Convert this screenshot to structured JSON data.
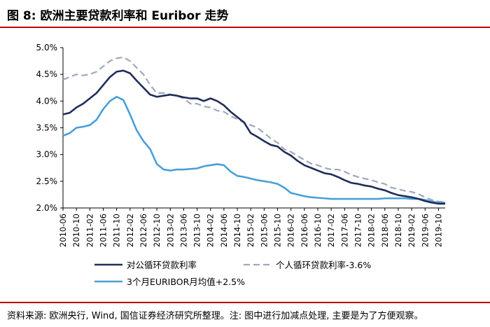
{
  "header": {
    "title": "图 8: 欧洲主要贷款利率和 Euribor 走势"
  },
  "footer": {
    "source": "资料来源: 欧洲央行, Wind, 国信证券经济研究所整理。注: 图中进行加减点处理, 主要是为了方便观察。"
  },
  "chart_data": {
    "type": "line",
    "title": "图 8: 欧洲主要贷款利率和 Euribor 走势",
    "xlabel": "",
    "ylabel": "",
    "x_ticks": [
      "2010-06",
      "2010-10",
      "2011-02",
      "2011-06",
      "2011-10",
      "2012-02",
      "2012-06",
      "2012-10",
      "2013-02",
      "2013-06",
      "2013-10",
      "2014-02",
      "2014-06",
      "2014-10",
      "2015-02",
      "2015-06",
      "2015-10",
      "2016-02",
      "2016-06",
      "2016-10",
      "2017-02",
      "2017-06",
      "2017-10",
      "2018-02",
      "2018-06",
      "2018-10",
      "2019-02",
      "2019-06",
      "2019-10"
    ],
    "y_ticks": [
      "2.0%",
      "2.5%",
      "3.0%",
      "3.5%",
      "4.0%",
      "4.5%",
      "5.0%"
    ],
    "ylim": [
      2.0,
      5.0
    ],
    "legend_position": "bottom",
    "series": [
      {
        "name": "对公循环贷款利率",
        "color": "#1f2d5a",
        "style": "solid",
        "points": [
          [
            "2010-06",
            3.75
          ],
          [
            "2010-08",
            3.78
          ],
          [
            "2010-10",
            3.88
          ],
          [
            "2010-12",
            3.95
          ],
          [
            "2011-02",
            4.05
          ],
          [
            "2011-04",
            4.15
          ],
          [
            "2011-06",
            4.3
          ],
          [
            "2011-08",
            4.45
          ],
          [
            "2011-10",
            4.55
          ],
          [
            "2011-12",
            4.57
          ],
          [
            "2012-02",
            4.52
          ],
          [
            "2012-04",
            4.38
          ],
          [
            "2012-06",
            4.25
          ],
          [
            "2012-08",
            4.12
          ],
          [
            "2012-10",
            4.08
          ],
          [
            "2012-12",
            4.1
          ],
          [
            "2013-02",
            4.12
          ],
          [
            "2013-04",
            4.1
          ],
          [
            "2013-06",
            4.07
          ],
          [
            "2013-08",
            4.05
          ],
          [
            "2013-10",
            4.05
          ],
          [
            "2013-12",
            4.0
          ],
          [
            "2014-02",
            4.05
          ],
          [
            "2014-04",
            4.0
          ],
          [
            "2014-06",
            3.92
          ],
          [
            "2014-08",
            3.8
          ],
          [
            "2014-10",
            3.7
          ],
          [
            "2014-12",
            3.6
          ],
          [
            "2015-02",
            3.4
          ],
          [
            "2015-04",
            3.33
          ],
          [
            "2015-06",
            3.25
          ],
          [
            "2015-08",
            3.18
          ],
          [
            "2015-10",
            3.15
          ],
          [
            "2015-12",
            3.05
          ],
          [
            "2016-02",
            2.98
          ],
          [
            "2016-04",
            2.88
          ],
          [
            "2016-06",
            2.8
          ],
          [
            "2016-08",
            2.75
          ],
          [
            "2016-10",
            2.7
          ],
          [
            "2016-12",
            2.65
          ],
          [
            "2017-02",
            2.63
          ],
          [
            "2017-04",
            2.58
          ],
          [
            "2017-06",
            2.52
          ],
          [
            "2017-08",
            2.47
          ],
          [
            "2017-10",
            2.45
          ],
          [
            "2017-12",
            2.42
          ],
          [
            "2018-02",
            2.4
          ],
          [
            "2018-04",
            2.36
          ],
          [
            "2018-06",
            2.33
          ],
          [
            "2018-08",
            2.28
          ],
          [
            "2018-10",
            2.24
          ],
          [
            "2018-12",
            2.22
          ],
          [
            "2019-02",
            2.2
          ],
          [
            "2019-04",
            2.17
          ],
          [
            "2019-06",
            2.13
          ],
          [
            "2019-08",
            2.1
          ],
          [
            "2019-10",
            2.08
          ],
          [
            "2019-12",
            2.08
          ]
        ]
      },
      {
        "name": "个人循环贷款利率-3.6%",
        "color": "#a0a8bc",
        "style": "dashed",
        "points": [
          [
            "2010-06",
            4.4
          ],
          [
            "2010-08",
            4.45
          ],
          [
            "2010-10",
            4.5
          ],
          [
            "2010-12",
            4.48
          ],
          [
            "2011-02",
            4.5
          ],
          [
            "2011-04",
            4.55
          ],
          [
            "2011-06",
            4.65
          ],
          [
            "2011-08",
            4.75
          ],
          [
            "2011-10",
            4.8
          ],
          [
            "2011-12",
            4.82
          ],
          [
            "2012-02",
            4.75
          ],
          [
            "2012-04",
            4.62
          ],
          [
            "2012-06",
            4.5
          ],
          [
            "2012-08",
            4.3
          ],
          [
            "2012-10",
            4.15
          ],
          [
            "2012-12",
            4.15
          ],
          [
            "2013-02",
            4.12
          ],
          [
            "2013-04",
            4.1
          ],
          [
            "2013-06",
            4.05
          ],
          [
            "2013-08",
            3.95
          ],
          [
            "2013-10",
            3.95
          ],
          [
            "2013-12",
            3.9
          ],
          [
            "2014-02",
            3.88
          ],
          [
            "2014-04",
            3.82
          ],
          [
            "2014-06",
            3.8
          ],
          [
            "2014-08",
            3.72
          ],
          [
            "2014-10",
            3.66
          ],
          [
            "2014-12",
            3.6
          ],
          [
            "2015-02",
            3.55
          ],
          [
            "2015-04",
            3.5
          ],
          [
            "2015-06",
            3.4
          ],
          [
            "2015-08",
            3.3
          ],
          [
            "2015-10",
            3.22
          ],
          [
            "2015-12",
            3.1
          ],
          [
            "2016-02",
            3.05
          ],
          [
            "2016-04",
            2.97
          ],
          [
            "2016-06",
            2.9
          ],
          [
            "2016-08",
            2.83
          ],
          [
            "2016-10",
            2.8
          ],
          [
            "2016-12",
            2.75
          ],
          [
            "2017-02",
            2.72
          ],
          [
            "2017-04",
            2.72
          ],
          [
            "2017-06",
            2.68
          ],
          [
            "2017-08",
            2.62
          ],
          [
            "2017-10",
            2.58
          ],
          [
            "2017-12",
            2.55
          ],
          [
            "2018-02",
            2.52
          ],
          [
            "2018-04",
            2.48
          ],
          [
            "2018-06",
            2.45
          ],
          [
            "2018-08",
            2.38
          ],
          [
            "2018-10",
            2.35
          ],
          [
            "2018-12",
            2.32
          ],
          [
            "2019-02",
            2.3
          ],
          [
            "2019-04",
            2.26
          ],
          [
            "2019-06",
            2.2
          ],
          [
            "2019-08",
            2.15
          ],
          [
            "2019-10",
            2.12
          ],
          [
            "2019-12",
            2.1
          ]
        ]
      },
      {
        "name": "3个月EURIBOR月均值+2.5%",
        "color": "#4a9fd8",
        "style": "solid",
        "points": [
          [
            "2010-06",
            3.35
          ],
          [
            "2010-08",
            3.4
          ],
          [
            "2010-10",
            3.5
          ],
          [
            "2010-12",
            3.52
          ],
          [
            "2011-02",
            3.55
          ],
          [
            "2011-04",
            3.65
          ],
          [
            "2011-06",
            3.85
          ],
          [
            "2011-08",
            4.0
          ],
          [
            "2011-10",
            4.08
          ],
          [
            "2011-12",
            4.02
          ],
          [
            "2012-02",
            3.75
          ],
          [
            "2012-04",
            3.45
          ],
          [
            "2012-06",
            3.25
          ],
          [
            "2012-08",
            3.1
          ],
          [
            "2012-10",
            2.82
          ],
          [
            "2012-12",
            2.72
          ],
          [
            "2013-02",
            2.7
          ],
          [
            "2013-04",
            2.72
          ],
          [
            "2013-06",
            2.72
          ],
          [
            "2013-08",
            2.73
          ],
          [
            "2013-10",
            2.74
          ],
          [
            "2013-12",
            2.78
          ],
          [
            "2014-02",
            2.8
          ],
          [
            "2014-04",
            2.82
          ],
          [
            "2014-06",
            2.8
          ],
          [
            "2014-08",
            2.68
          ],
          [
            "2014-10",
            2.6
          ],
          [
            "2014-12",
            2.58
          ],
          [
            "2015-02",
            2.55
          ],
          [
            "2015-04",
            2.52
          ],
          [
            "2015-06",
            2.5
          ],
          [
            "2015-08",
            2.48
          ],
          [
            "2015-10",
            2.45
          ],
          [
            "2015-12",
            2.38
          ],
          [
            "2016-02",
            2.28
          ],
          [
            "2016-04",
            2.25
          ],
          [
            "2016-06",
            2.22
          ],
          [
            "2016-08",
            2.2
          ],
          [
            "2016-10",
            2.19
          ],
          [
            "2016-12",
            2.18
          ],
          [
            "2017-02",
            2.17
          ],
          [
            "2017-04",
            2.17
          ],
          [
            "2017-06",
            2.17
          ],
          [
            "2017-08",
            2.17
          ],
          [
            "2017-10",
            2.17
          ],
          [
            "2017-12",
            2.17
          ],
          [
            "2018-02",
            2.17
          ],
          [
            "2018-04",
            2.17
          ],
          [
            "2018-06",
            2.18
          ],
          [
            "2018-08",
            2.18
          ],
          [
            "2018-10",
            2.18
          ],
          [
            "2018-12",
            2.18
          ],
          [
            "2019-02",
            2.17
          ],
          [
            "2019-04",
            2.17
          ],
          [
            "2019-06",
            2.15
          ],
          [
            "2019-08",
            2.12
          ],
          [
            "2019-10",
            2.1
          ],
          [
            "2019-12",
            2.1
          ]
        ]
      }
    ]
  }
}
